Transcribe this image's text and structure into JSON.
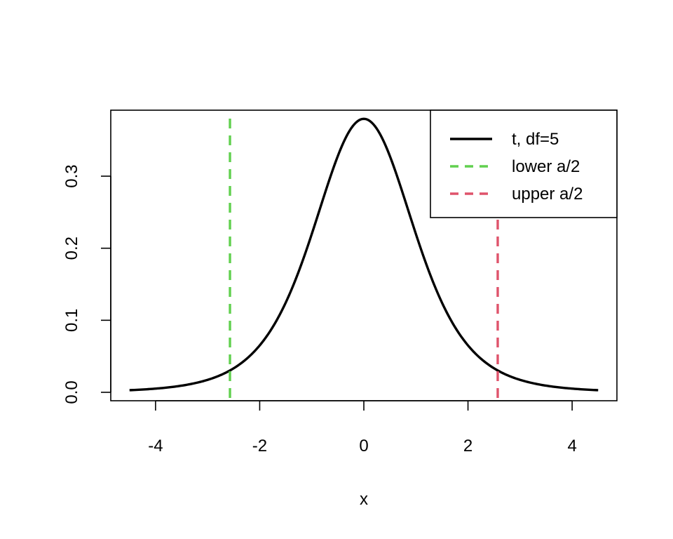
{
  "chart_data": {
    "type": "line",
    "title": "",
    "xlabel": "x",
    "ylabel": "",
    "xlim": [
      -4.86,
      4.86
    ],
    "ylim": [
      -0.0117,
      0.3916
    ],
    "x_ticks": [
      -4,
      -2,
      0,
      2,
      4
    ],
    "x_tick_labels": [
      "-4",
      "-2",
      "0",
      "2",
      "4"
    ],
    "y_ticks": [
      0.0,
      0.1,
      0.2,
      0.3
    ],
    "y_tick_labels": [
      "0.0",
      "0.1",
      "0.2",
      "0.3"
    ],
    "grid": false,
    "legend_position": "top-right",
    "series": [
      {
        "name": "t, df=5",
        "color": "#000000",
        "style": "solid",
        "distribution": "student-t",
        "df": 5,
        "x_range": [
          -4.5,
          4.5
        ]
      }
    ],
    "reference_lines": [
      {
        "name": "lower a/2",
        "orientation": "vertical",
        "x": -2.571,
        "color": "#61D04F",
        "style": "dashed"
      },
      {
        "name": "upper a/2",
        "orientation": "vertical",
        "x": 2.571,
        "color": "#DF536B",
        "style": "dashed"
      }
    ]
  }
}
